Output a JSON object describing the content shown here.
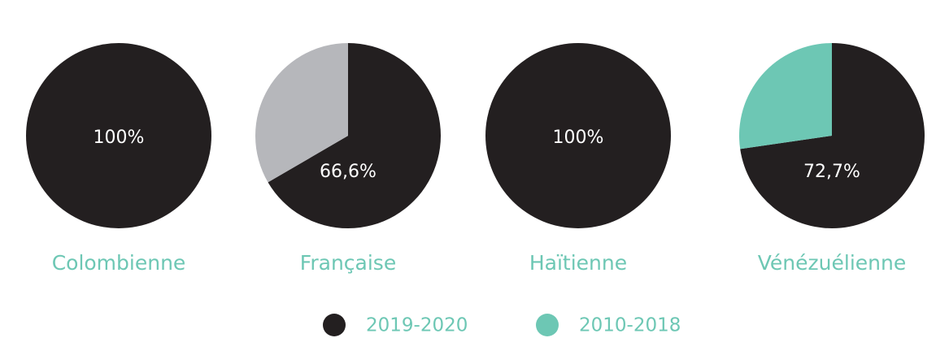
{
  "chart_data": [
    {
      "type": "pie",
      "title": "Colombienne",
      "categories": [
        "2019-2020"
      ],
      "values": [
        100
      ],
      "value_labels": [
        "100%"
      ],
      "colors": [
        "#231f20"
      ]
    },
    {
      "type": "pie",
      "title": "Française",
      "categories": [
        "2019-2020",
        null
      ],
      "values": [
        66.6,
        33.4
      ],
      "value_labels": [
        "66,6%",
        null
      ],
      "colors": [
        "#231f20",
        "#b6b7bb"
      ]
    },
    {
      "type": "pie",
      "title": "Haïtienne",
      "categories": [
        "2019-2020"
      ],
      "values": [
        100
      ],
      "value_labels": [
        "100%"
      ],
      "colors": [
        "#231f20"
      ]
    },
    {
      "type": "pie",
      "title": "Vénézuélienne",
      "categories": [
        "2019-2020",
        "2010-2018"
      ],
      "values": [
        72.7,
        27.3
      ],
      "value_labels": [
        "72,7%",
        null
      ],
      "colors": [
        "#231f20",
        "#6dc7b4"
      ]
    }
  ],
  "legend": [
    {
      "name": "2019-2020",
      "color": "#231f20"
    },
    {
      "name": "2010-2018",
      "color": "#6dc7b4"
    }
  ]
}
